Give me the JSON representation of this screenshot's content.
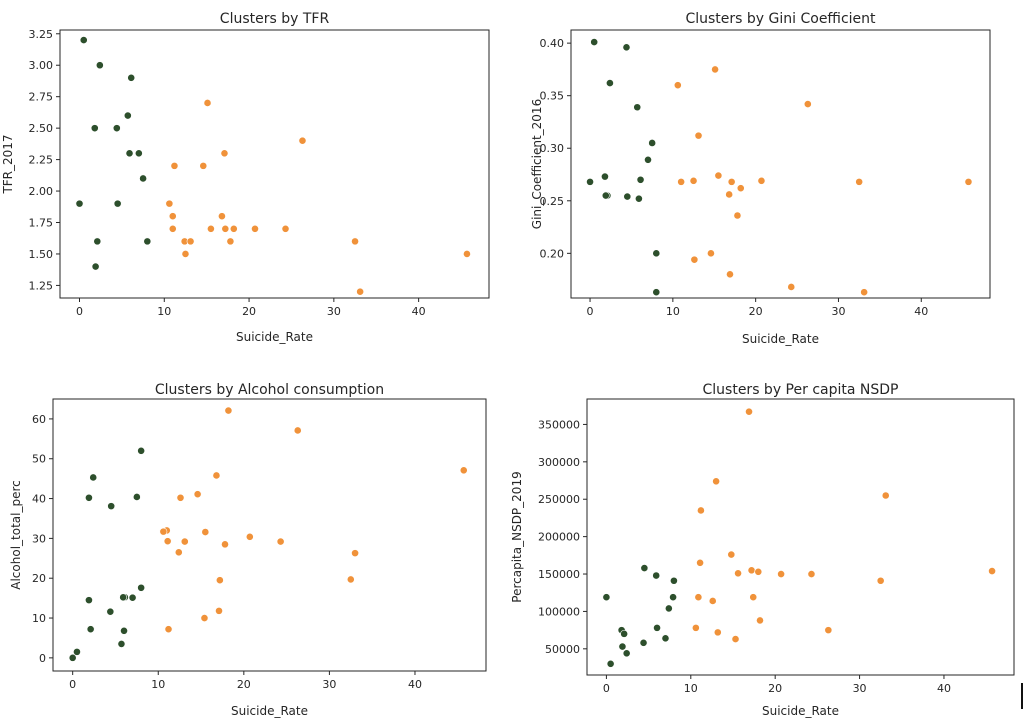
{
  "figure": {
    "cluster_colors": [
      "#2d4f2c",
      "#f0923a"
    ]
  },
  "chart_data": [
    {
      "type": "scatter",
      "title": "Clusters by TFR",
      "xlabel": "Suicide_Rate",
      "ylabel": "TFR_2017",
      "xlim": [
        -2.3,
        48.3
      ],
      "ylim": [
        1.15,
        3.28
      ],
      "xticks": [
        0,
        10,
        20,
        30,
        40
      ],
      "xtick_labels": [
        "0",
        "10",
        "20",
        "30",
        "40"
      ],
      "yticks": [
        1.25,
        1.5,
        1.75,
        2.0,
        2.25,
        2.5,
        2.75,
        3.0,
        3.25
      ],
      "ytick_labels": [
        "1.25",
        "1.50",
        "1.75",
        "2.00",
        "2.25",
        "2.50",
        "2.75",
        "3.00",
        "3.25"
      ],
      "grid": false,
      "series": [
        {
          "x": [
            0.5,
            2.4,
            6.1,
            1.8,
            4.4,
            5.7,
            5.9,
            7.0,
            7.5,
            0.0,
            4.5,
            2.1,
            8.0,
            1.9
          ],
          "y": [
            3.2,
            3.0,
            2.9,
            2.5,
            2.5,
            2.6,
            2.3,
            2.3,
            2.1,
            1.9,
            1.9,
            1.6,
            1.6,
            1.4
          ]
        },
        {
          "x": [
            15.1,
            26.3,
            11.2,
            17.1,
            14.6,
            10.6,
            11.0,
            11.0,
            12.4,
            13.1,
            12.5,
            15.5,
            16.8,
            17.2,
            18.2,
            17.8,
            20.7,
            24.3,
            32.5,
            45.7,
            33.1
          ],
          "y": [
            2.7,
            2.4,
            2.2,
            2.3,
            2.2,
            1.9,
            1.8,
            1.7,
            1.6,
            1.6,
            1.5,
            1.7,
            1.8,
            1.7,
            1.7,
            1.6,
            1.7,
            1.7,
            1.6,
            1.5,
            1.2
          ]
        }
      ]
    },
    {
      "type": "scatter",
      "title": "Clusters by Gini Coefficient",
      "xlabel": "Suicide_Rate",
      "ylabel": "Gini_Coefficient_2016",
      "xlim": [
        -2.3,
        48.3
      ],
      "ylim": [
        0.1575,
        0.4125
      ],
      "xticks": [
        0,
        10,
        20,
        30,
        40
      ],
      "xtick_labels": [
        "0",
        "10",
        "20",
        "30",
        "40"
      ],
      "yticks": [
        0.2,
        0.25,
        0.3,
        0.35,
        0.4
      ],
      "ytick_labels": [
        "0.20",
        "0.25",
        "0.30",
        "0.35",
        "0.40"
      ],
      "grid": false,
      "series": [
        {
          "x": [
            0.5,
            4.4,
            2.4,
            5.7,
            7.5,
            7.0,
            1.8,
            0.0,
            6.1,
            2.1,
            1.9,
            4.5,
            5.9,
            8.0,
            8.0
          ],
          "y": [
            0.401,
            0.396,
            0.362,
            0.339,
            0.305,
            0.289,
            0.273,
            0.268,
            0.27,
            0.255,
            0.255,
            0.254,
            0.252,
            0.2,
            0.163
          ]
        },
        {
          "x": [
            15.1,
            10.6,
            26.3,
            13.1,
            15.5,
            11.0,
            12.5,
            17.1,
            20.7,
            32.5,
            45.7,
            18.2,
            16.8,
            17.8,
            14.6,
            12.6,
            16.9,
            24.3,
            33.1
          ],
          "y": [
            0.375,
            0.36,
            0.342,
            0.312,
            0.274,
            0.268,
            0.269,
            0.268,
            0.269,
            0.268,
            0.268,
            0.262,
            0.256,
            0.236,
            0.2,
            0.194,
            0.18,
            0.168,
            0.163
          ]
        }
      ]
    },
    {
      "type": "scatter",
      "title": "Clusters by Alcohol consumption",
      "xlabel": "Suicide_Rate",
      "ylabel": "Alcohol_total_perc",
      "xlim": [
        -2.3,
        48.3
      ],
      "ylim": [
        -3.3,
        65.0
      ],
      "xticks": [
        0,
        10,
        20,
        30,
        40
      ],
      "xtick_labels": [
        "0",
        "10",
        "20",
        "30",
        "40"
      ],
      "yticks": [
        0,
        10,
        20,
        30,
        40,
        50,
        60
      ],
      "ytick_labels": [
        "0",
        "10",
        "20",
        "30",
        "40",
        "50",
        "60"
      ],
      "grid": false,
      "series": [
        {
          "x": [
            8.0,
            2.4,
            1.9,
            7.5,
            4.5,
            6.1,
            7.0,
            8.0,
            4.4,
            5.9,
            1.9,
            2.1,
            6.0,
            5.7,
            0.5,
            0.0
          ],
          "y": [
            52.0,
            45.3,
            40.2,
            40.4,
            38.1,
            15.2,
            15.1,
            17.6,
            11.6,
            15.2,
            14.5,
            7.2,
            6.8,
            3.5,
            1.5,
            0.0
          ]
        },
        {
          "x": [
            18.2,
            26.3,
            45.7,
            16.8,
            14.6,
            12.6,
            11.0,
            10.6,
            11.1,
            15.5,
            13.1,
            20.7,
            24.3,
            17.8,
            12.4,
            33.0,
            17.2,
            32.5,
            17.1,
            15.4,
            11.2
          ],
          "y": [
            62.1,
            57.1,
            47.1,
            45.8,
            41.1,
            40.2,
            32.0,
            31.7,
            29.3,
            31.6,
            29.2,
            30.4,
            29.2,
            28.5,
            26.5,
            26.3,
            19.5,
            19.7,
            11.8,
            10.0,
            7.2
          ]
        }
      ]
    },
    {
      "type": "scatter",
      "title": "Clusters by Per capita NSDP",
      "xlabel": "Suicide_Rate",
      "ylabel": "Percapita_NSDP_2019",
      "xlim": [
        -2.3,
        48.3
      ],
      "ylim": [
        15000,
        384000
      ],
      "xticks": [
        0,
        10,
        20,
        30,
        40
      ],
      "xtick_labels": [
        "0",
        "10",
        "20",
        "30",
        "40"
      ],
      "yticks": [
        50000,
        100000,
        150000,
        200000,
        250000,
        300000,
        350000
      ],
      "ytick_labels": [
        "50000",
        "100000",
        "150000",
        "200000",
        "250000",
        "300000",
        "350000"
      ],
      "grid": false,
      "series": [
        {
          "x": [
            4.5,
            5.9,
            8.0,
            0.0,
            7.9,
            7.4,
            1.8,
            6.0,
            2.1,
            1.9,
            7.0,
            4.4,
            2.4,
            0.5
          ],
          "y": [
            158000,
            148000,
            141000,
            119000,
            119000,
            104000,
            75000,
            78000,
            70000,
            53000,
            64000,
            58000,
            44000,
            30000
          ]
        },
        {
          "x": [
            16.9,
            13.0,
            33.1,
            11.2,
            14.8,
            11.1,
            15.6,
            17.2,
            18.0,
            20.7,
            24.3,
            45.7,
            32.5,
            10.9,
            17.4,
            12.6,
            18.2,
            13.2,
            26.3,
            15.3,
            10.6
          ],
          "y": [
            367000,
            274000,
            255000,
            235000,
            176000,
            165000,
            151000,
            155000,
            153000,
            150000,
            150000,
            154000,
            141000,
            119000,
            119000,
            114000,
            88000,
            72000,
            75000,
            63000,
            78000
          ]
        }
      ]
    }
  ]
}
